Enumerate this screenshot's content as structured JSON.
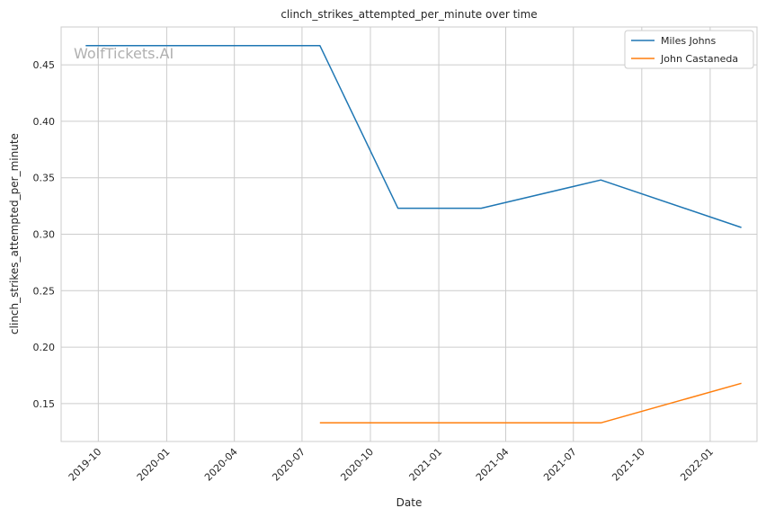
{
  "chart_data": {
    "type": "line",
    "title": "clinch_strikes_attempted_per_minute over time",
    "xlabel": "Date",
    "ylabel": "clinch_strikes_attempted_per_minute",
    "watermark": "WolfTickets.AI",
    "x_tick_labels": [
      "2019-10",
      "2020-01",
      "2020-04",
      "2020-07",
      "2020-10",
      "2021-01",
      "2021-04",
      "2021-07",
      "2021-10",
      "2022-01"
    ],
    "x_tick_dates": [
      "2019-10-01",
      "2020-01-01",
      "2020-04-01",
      "2020-07-01",
      "2020-10-01",
      "2021-01-01",
      "2021-04-01",
      "2021-07-01",
      "2021-10-01",
      "2022-01-01"
    ],
    "xlim": [
      "2019-08-12",
      "2022-03-05"
    ],
    "y_ticks": [
      0.15,
      0.2,
      0.25,
      0.3,
      0.35,
      0.4,
      0.45
    ],
    "y_tick_labels": [
      "0.15",
      "0.20",
      "0.25",
      "0.30",
      "0.35",
      "0.40",
      "0.45"
    ],
    "ylim": [
      0.1165,
      0.4835
    ],
    "grid": true,
    "legend_position": "top-right",
    "series": [
      {
        "name": "Miles Johns",
        "color": "#1f77b4",
        "points": [
          {
            "x": "2019-09-14",
            "y": 0.467
          },
          {
            "x": "2020-07-25",
            "y": 0.467
          },
          {
            "x": "2020-11-07",
            "y": 0.323
          },
          {
            "x": "2021-02-27",
            "y": 0.323
          },
          {
            "x": "2021-08-07",
            "y": 0.348
          },
          {
            "x": "2022-02-12",
            "y": 0.306
          }
        ]
      },
      {
        "name": "John Castaneda",
        "color": "#ff7f0e",
        "points": [
          {
            "x": "2020-07-25",
            "y": 0.133
          },
          {
            "x": "2021-08-07",
            "y": 0.133
          },
          {
            "x": "2022-02-12",
            "y": 0.168
          }
        ]
      }
    ]
  }
}
